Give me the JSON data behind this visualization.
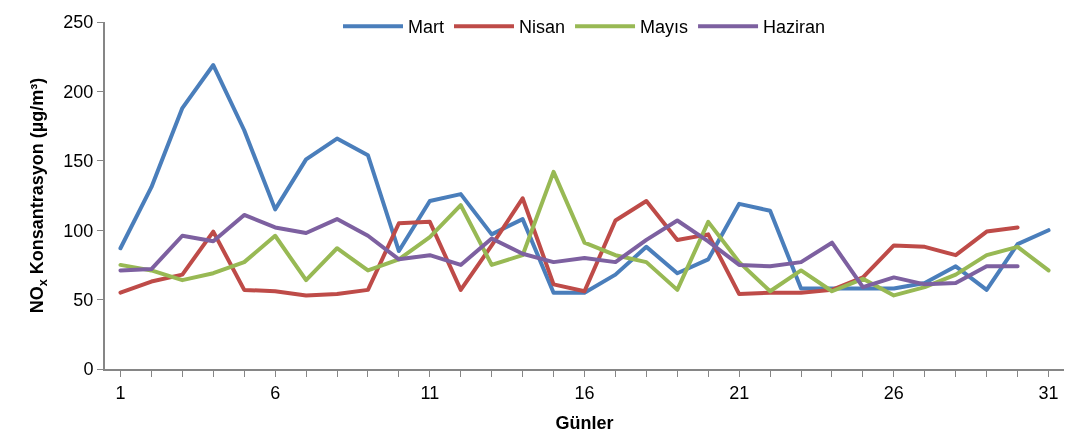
{
  "chart_data": {
    "type": "line",
    "xlabel": "Günler",
    "ylabel": "NO$_{x}$ Konsantrasyon (µg/m³)",
    "x": [
      1,
      2,
      3,
      4,
      5,
      6,
      7,
      8,
      9,
      10,
      11,
      12,
      13,
      14,
      15,
      16,
      17,
      18,
      19,
      20,
      21,
      22,
      23,
      24,
      25,
      26,
      27,
      28,
      29,
      30,
      31
    ],
    "xlim": [
      0.5,
      31.5
    ],
    "xticks": [
      1,
      6,
      11,
      16,
      21,
      26,
      31
    ],
    "ylim": [
      0,
      250
    ],
    "yticks": [
      0,
      50,
      100,
      150,
      200,
      250
    ],
    "legend": "top",
    "marker": "none",
    "line_style": "solid",
    "series": [
      {
        "name": "Mart",
        "color": "#4a7ebb",
        "values": [
          87,
          131,
          188,
          219,
          172,
          115,
          151,
          166,
          154,
          85,
          121,
          126,
          97,
          108,
          55,
          55,
          68,
          88,
          69,
          79,
          119,
          114,
          58,
          58,
          58,
          58,
          62,
          74,
          57,
          90,
          100
        ]
      },
      {
        "name": "Nisan",
        "color": "#be4b48",
        "values": [
          55,
          63,
          68,
          99,
          57,
          56,
          53,
          54,
          57,
          105,
          106,
          57,
          89,
          123,
          61,
          56,
          107,
          121,
          93,
          97,
          54,
          55,
          55,
          57,
          66,
          89,
          88,
          82,
          99,
          102,
          null
        ]
      },
      {
        "name": "Mayıs",
        "color": "#98b954",
        "values": [
          75,
          71,
          64,
          69,
          77,
          96,
          64,
          87,
          71,
          79,
          95,
          118,
          75,
          82,
          142,
          91,
          82,
          77,
          57,
          106,
          77,
          56,
          71,
          56,
          65,
          53,
          59,
          68,
          82,
          88,
          71
        ]
      },
      {
        "name": "Haziran",
        "color": "#7d60a0",
        "values": [
          71,
          72,
          96,
          92,
          111,
          102,
          98,
          108,
          96,
          79,
          82,
          75,
          94,
          83,
          77,
          80,
          77,
          93,
          107,
          92,
          75,
          74,
          77,
          91,
          59,
          66,
          61,
          62,
          74,
          74,
          null
        ]
      }
    ]
  }
}
